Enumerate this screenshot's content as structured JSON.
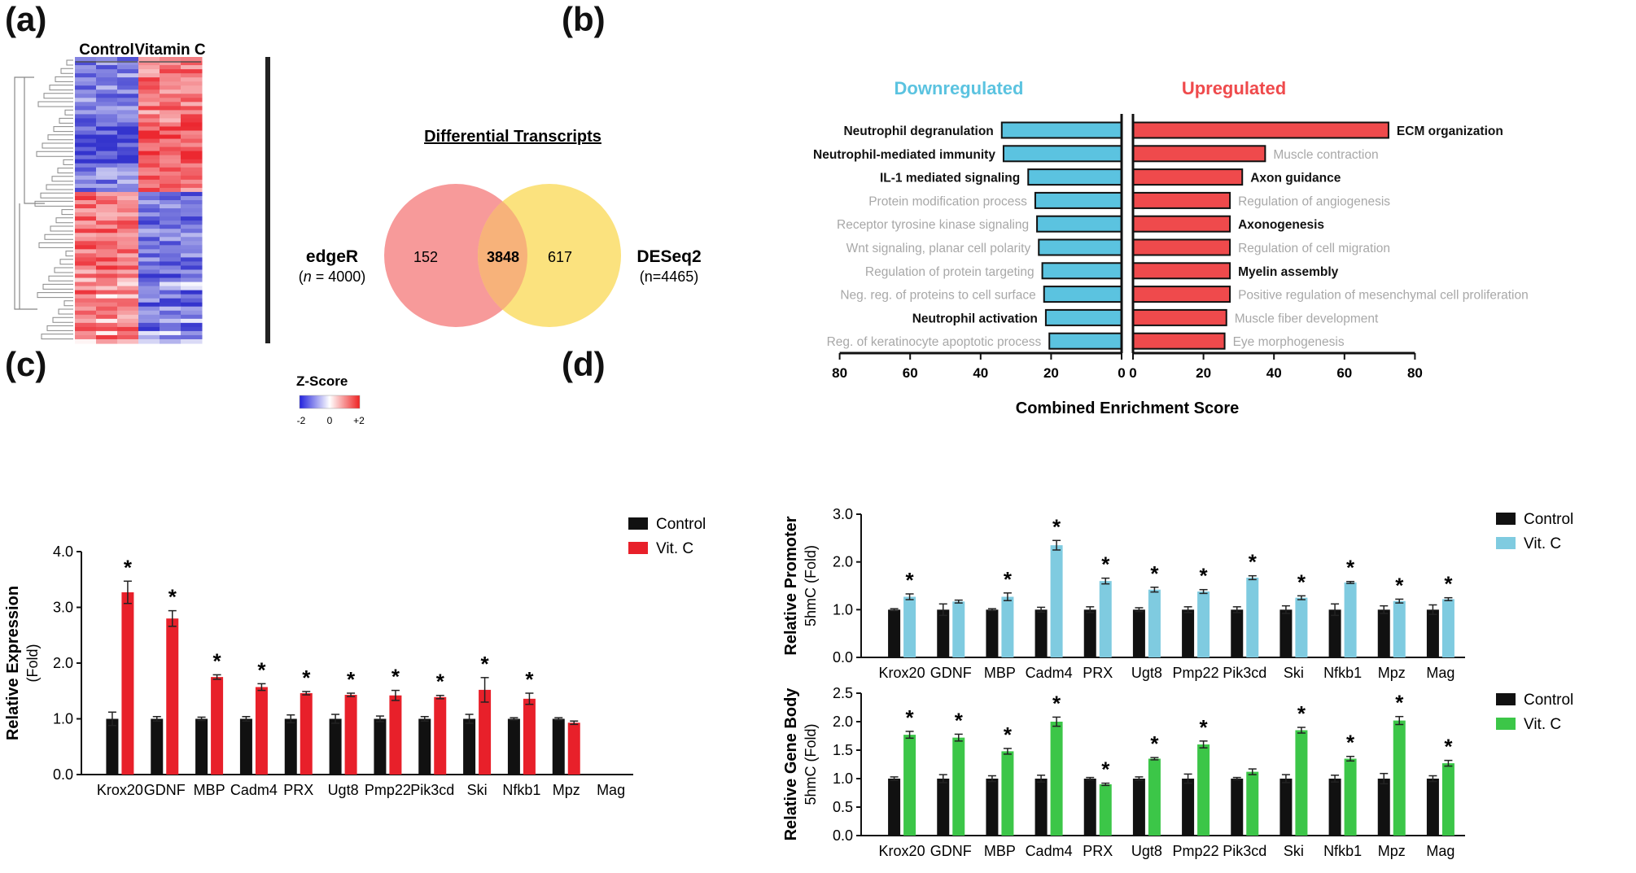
{
  "panels": {
    "a": "(a)",
    "b": "(b)",
    "c": "(c)",
    "d": "(d)"
  },
  "colors": {
    "black_bar": "#111111",
    "red": "#e8202a",
    "light_blue": "#7fcbe0",
    "green": "#3cc648",
    "down_cyan": "#5bc3e0",
    "up_red": "#ef4a4c",
    "venn_pink": "#f79a9a",
    "venn_yellow": "#fbe27e",
    "venn_overlap": "#f7b27a",
    "grey_label": "#a8a8a8"
  },
  "chart_data": [
    {
      "id": "a_heatmap",
      "type": "heatmap",
      "column_groups": [
        "Control",
        "Vitamin C"
      ],
      "legend_title": "Z-Score",
      "legend_ticks": [
        "-2",
        "0",
        "+2"
      ],
      "zlim": [
        -2,
        2
      ]
    },
    {
      "id": "a_venn",
      "type": "venn",
      "title": "Differential Transcripts",
      "sets": [
        {
          "name": "edgeR",
          "n_label": "(n = 4000)",
          "n": 4000,
          "only": 152,
          "n_prefix": "(",
          "n_var": "n",
          "n_suffix": " = 4000)"
        },
        {
          "name": "DESeq2",
          "n_label": "(n=4465)",
          "n": 4465,
          "only": 617
        }
      ],
      "overlap": 3848
    },
    {
      "id": "b_enrichment",
      "type": "bar",
      "orientation": "horizontal-diverging",
      "left_title": "Downregulated",
      "right_title": "Upregulated",
      "xlabel": "Combined Enrichment Score",
      "xlim": [
        0,
        80
      ],
      "xticks": [
        "80",
        "60",
        "40",
        "20",
        "0",
        "0",
        "20",
        "40",
        "60",
        "80"
      ],
      "down": [
        {
          "term": "Neutrophil degranulation",
          "value": 34,
          "bold": true
        },
        {
          "term": "Neutrophil-mediated immunity",
          "value": 33.5,
          "bold": true
        },
        {
          "term": "IL-1 mediated signaling",
          "value": 26.5,
          "bold": true
        },
        {
          "term": "Protein modification process",
          "value": 24.5,
          "bold": false
        },
        {
          "term": "Receptor tyrosine kinase signaling",
          "value": 24,
          "bold": false
        },
        {
          "term": "Wnt signaling, planar cell polarity",
          "value": 23.5,
          "bold": false
        },
        {
          "term": "Regulation of protein targeting",
          "value": 22.5,
          "bold": false
        },
        {
          "term": "Neg. reg. of  proteins to cell surface",
          "value": 22,
          "bold": false
        },
        {
          "term": "Neutrophil activation",
          "value": 21.5,
          "bold": true
        },
        {
          "term": "Reg. of keratinocyte apoptotic process",
          "value": 20.5,
          "bold": false
        }
      ],
      "up": [
        {
          "term": "ECM organization",
          "value": 72.5,
          "bold": true
        },
        {
          "term": "Muscle contraction",
          "value": 37.5,
          "bold": false
        },
        {
          "term": "Axon guidance",
          "value": 31,
          "bold": true
        },
        {
          "term": "Regulation of angiogenesis",
          "value": 27.5,
          "bold": false
        },
        {
          "term": "Axonogenesis",
          "value": 27.5,
          "bold": true
        },
        {
          "term": "Regulation of cell migration",
          "value": 27.5,
          "bold": false
        },
        {
          "term": "Myelin assembly",
          "value": 27.5,
          "bold": true
        },
        {
          "term": "Positive regulation of mesenchymal cell proliferation",
          "value": 27.5,
          "bold": false
        },
        {
          "term": "Muscle fiber development",
          "value": 26.5,
          "bold": false
        },
        {
          "term": "Eye morphogenesis",
          "value": 26,
          "bold": false
        }
      ]
    },
    {
      "id": "c_expression",
      "type": "bar",
      "ylabel": "Relative Expression",
      "ylabel_sub": "(Fold)",
      "ylim": [
        0,
        4
      ],
      "yticks": [
        "0.0",
        "1.0",
        "2.0",
        "3.0",
        "4.0"
      ],
      "categories": [
        "Krox20",
        "GDNF",
        "MBP",
        "Cadm4",
        "PRX",
        "Ugt8",
        "Pmp22",
        "Pik3cd",
        "Ski",
        "Nfkb1",
        "Mpz",
        "Mag"
      ],
      "series": [
        {
          "name": "Control",
          "values": [
            1.0,
            1.0,
            1.0,
            1.0,
            1.0,
            1.0,
            1.0,
            1.0,
            1.0,
            1.0,
            1.0,
            0.0
          ],
          "err": [
            0.12,
            0.04,
            0.03,
            0.04,
            0.07,
            0.08,
            0.05,
            0.04,
            0.08,
            0.02,
            0.02,
            0.0
          ]
        },
        {
          "name": "Vit. C",
          "values": [
            3.27,
            2.8,
            1.75,
            1.57,
            1.46,
            1.43,
            1.42,
            1.39,
            1.52,
            1.36,
            0.93,
            0.0
          ],
          "err": [
            0.2,
            0.14,
            0.04,
            0.06,
            0.03,
            0.03,
            0.09,
            0.03,
            0.22,
            0.1,
            0.03,
            0.0
          ]
        }
      ],
      "significant": [
        true,
        true,
        true,
        true,
        true,
        true,
        true,
        true,
        true,
        true,
        false,
        false
      ],
      "marker": "*"
    },
    {
      "id": "d_promoter",
      "type": "bar",
      "ylabel": "Relative Promoter",
      "ylabel_sub": "5hmC (Fold)",
      "ylim": [
        0,
        3
      ],
      "yticks": [
        "0.0",
        "1.0",
        "2.0",
        "3.0"
      ],
      "categories": [
        "Krox20",
        "GDNF",
        "MBP",
        "Cadm4",
        "PRX",
        "Ugt8",
        "Pmp22",
        "Pik3cd",
        "Ski",
        "Nfkb1",
        "Mpz",
        "Mag"
      ],
      "series": [
        {
          "name": "Control",
          "values": [
            1.0,
            1.0,
            1.0,
            1.0,
            1.0,
            1.0,
            1.0,
            1.0,
            1.0,
            1.0,
            1.0,
            1.0
          ],
          "err": [
            0.02,
            0.12,
            0.02,
            0.05,
            0.06,
            0.04,
            0.06,
            0.06,
            0.08,
            0.12,
            0.08,
            0.1
          ]
        },
        {
          "name": "Vit. C",
          "values": [
            1.27,
            1.17,
            1.27,
            2.35,
            1.6,
            1.42,
            1.38,
            1.67,
            1.25,
            1.57,
            1.18,
            1.22
          ],
          "err": [
            0.06,
            0.03,
            0.08,
            0.1,
            0.06,
            0.05,
            0.04,
            0.04,
            0.04,
            0.02,
            0.04,
            0.03
          ]
        }
      ],
      "significant": [
        true,
        false,
        true,
        true,
        true,
        true,
        true,
        true,
        true,
        true,
        true,
        true
      ],
      "marker": "*"
    },
    {
      "id": "d_genebody",
      "type": "bar",
      "ylabel": "Relative Gene Body",
      "ylabel_sub": "5hmC (Fold)",
      "ylim": [
        0,
        2.5
      ],
      "yticks": [
        "0.0",
        "0.5",
        "1.0",
        "1.5",
        "2.0",
        "2.5"
      ],
      "categories": [
        "Krox20",
        "GDNF",
        "MBP",
        "Cadm4",
        "PRX",
        "Ugt8",
        "Pmp22",
        "Pik3cd",
        "Ski",
        "Nfkb1",
        "Mpz",
        "Mag"
      ],
      "series": [
        {
          "name": "Control",
          "values": [
            1.0,
            1.0,
            1.0,
            1.0,
            1.0,
            1.0,
            1.0,
            1.0,
            1.0,
            1.0,
            1.0,
            1.0
          ],
          "err": [
            0.03,
            0.07,
            0.05,
            0.06,
            0.02,
            0.03,
            0.08,
            0.02,
            0.07,
            0.06,
            0.09,
            0.05
          ]
        },
        {
          "name": "Vit. C",
          "values": [
            1.77,
            1.72,
            1.48,
            2.0,
            0.9,
            1.35,
            1.6,
            1.12,
            1.85,
            1.35,
            2.02,
            1.27
          ],
          "err": [
            0.06,
            0.06,
            0.05,
            0.08,
            0.02,
            0.02,
            0.06,
            0.05,
            0.05,
            0.04,
            0.07,
            0.05
          ]
        }
      ],
      "significant": [
        true,
        true,
        true,
        true,
        true,
        true,
        true,
        false,
        true,
        true,
        true,
        true
      ],
      "marker": "*"
    }
  ]
}
